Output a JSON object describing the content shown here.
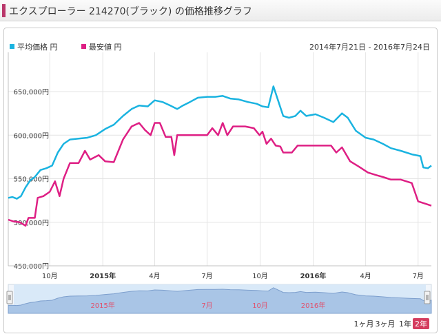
{
  "header": {
    "title": "エクスプローラー 214270(ブラック) の価格推移グラフ"
  },
  "legend": {
    "avg_label": "平均価格 円",
    "min_label": "最安値 円"
  },
  "date_range": "2014年7月21日 - 2016年7月24日",
  "colors": {
    "avg": "#1ab3e0",
    "min": "#de1f84",
    "accent": "#b9366a",
    "navigator_fill": "#a9c5e6"
  },
  "navigator": {
    "labels": [
      "2015年",
      "7月",
      "10月",
      "2016年"
    ]
  },
  "range_buttons": [
    "1ヶ月",
    "3ヶ月",
    "1年",
    "2年"
  ],
  "range_selected": "2年",
  "chart_data": {
    "type": "line",
    "title": "",
    "x_tick_labels": [
      "10月",
      "2015年",
      "4月",
      "7月",
      "10月",
      "2016年",
      "4月",
      "7月"
    ],
    "y_tick_labels": [
      "450,000円",
      "500,000円",
      "550,000円",
      "600,000円",
      "650,000円"
    ],
    "ylim": [
      450000,
      650000
    ],
    "xlim": [
      "2014-07-21",
      "2016-07-24"
    ],
    "grid": true,
    "legend_position": "top-left",
    "series": [
      {
        "name": "平均価格 円",
        "points": [
          [
            "2014-07-21",
            528000
          ],
          [
            "2014-07-28",
            529000
          ],
          [
            "2014-08-05",
            527000
          ],
          [
            "2014-08-12",
            530000
          ],
          [
            "2014-08-20",
            540000
          ],
          [
            "2014-08-28",
            548000
          ],
          [
            "2014-09-05",
            552000
          ],
          [
            "2014-09-15",
            560000
          ],
          [
            "2014-09-25",
            562000
          ],
          [
            "2014-10-05",
            565000
          ],
          [
            "2014-10-15",
            580000
          ],
          [
            "2014-10-25",
            590000
          ],
          [
            "2014-11-05",
            595000
          ],
          [
            "2014-11-20",
            596000
          ],
          [
            "2014-12-05",
            597000
          ],
          [
            "2014-12-20",
            600000
          ],
          [
            "2015-01-05",
            607000
          ],
          [
            "2015-01-20",
            612000
          ],
          [
            "2015-02-05",
            622000
          ],
          [
            "2015-02-20",
            630000
          ],
          [
            "2015-03-05",
            634000
          ],
          [
            "2015-03-20",
            633000
          ],
          [
            "2015-04-01",
            640000
          ],
          [
            "2015-04-15",
            638000
          ],
          [
            "2015-04-28",
            634000
          ],
          [
            "2015-05-10",
            630000
          ],
          [
            "2015-05-20",
            634000
          ],
          [
            "2015-06-01",
            638000
          ],
          [
            "2015-06-15",
            643000
          ],
          [
            "2015-07-01",
            644000
          ],
          [
            "2015-07-15",
            644000
          ],
          [
            "2015-07-28",
            645000
          ],
          [
            "2015-08-10",
            642000
          ],
          [
            "2015-08-25",
            641000
          ],
          [
            "2015-09-10",
            638000
          ],
          [
            "2015-09-25",
            636000
          ],
          [
            "2015-10-05",
            633000
          ],
          [
            "2015-10-15",
            632000
          ],
          [
            "2015-10-24",
            656000
          ],
          [
            "2015-11-01",
            640000
          ],
          [
            "2015-11-10",
            622000
          ],
          [
            "2015-11-20",
            620000
          ],
          [
            "2015-12-01",
            622000
          ],
          [
            "2015-12-10",
            628000
          ],
          [
            "2015-12-20",
            622000
          ],
          [
            "2016-01-05",
            624000
          ],
          [
            "2016-01-20",
            620000
          ],
          [
            "2016-02-05",
            615000
          ],
          [
            "2016-02-20",
            625000
          ],
          [
            "2016-03-01",
            620000
          ],
          [
            "2016-03-15",
            605000
          ],
          [
            "2016-04-01",
            597000
          ],
          [
            "2016-04-15",
            595000
          ],
          [
            "2016-05-01",
            590000
          ],
          [
            "2016-05-15",
            585000
          ],
          [
            "2016-06-01",
            582000
          ],
          [
            "2016-06-20",
            578000
          ],
          [
            "2016-07-05",
            576000
          ],
          [
            "2016-07-10",
            563000
          ],
          [
            "2016-07-18",
            562000
          ],
          [
            "2016-07-24",
            565000
          ]
        ]
      },
      {
        "name": "最安値 円",
        "points": [
          [
            "2014-07-21",
            503000
          ],
          [
            "2014-07-30",
            501000
          ],
          [
            "2014-08-10",
            500000
          ],
          [
            "2014-08-20",
            496000
          ],
          [
            "2014-08-25",
            505000
          ],
          [
            "2014-09-05",
            505000
          ],
          [
            "2014-09-10",
            528000
          ],
          [
            "2014-09-20",
            530000
          ],
          [
            "2014-10-01",
            535000
          ],
          [
            "2014-10-10",
            547000
          ],
          [
            "2014-10-18",
            530000
          ],
          [
            "2014-10-25",
            550000
          ],
          [
            "2014-11-05",
            568000
          ],
          [
            "2014-11-20",
            568000
          ],
          [
            "2014-12-01",
            582000
          ],
          [
            "2014-12-10",
            572000
          ],
          [
            "2014-12-25",
            577000
          ],
          [
            "2015-01-05",
            570000
          ],
          [
            "2015-01-20",
            569000
          ],
          [
            "2015-02-05",
            595000
          ],
          [
            "2015-02-20",
            610000
          ],
          [
            "2015-03-05",
            614000
          ],
          [
            "2015-03-15",
            606000
          ],
          [
            "2015-03-25",
            600000
          ],
          [
            "2015-04-01",
            614000
          ],
          [
            "2015-04-10",
            614000
          ],
          [
            "2015-04-20",
            598000
          ],
          [
            "2015-04-30",
            598000
          ],
          [
            "2015-05-05",
            577000
          ],
          [
            "2015-05-10",
            600000
          ],
          [
            "2015-06-15",
            600000
          ],
          [
            "2015-07-01",
            600000
          ],
          [
            "2015-07-10",
            608000
          ],
          [
            "2015-07-20",
            600000
          ],
          [
            "2015-07-28",
            614000
          ],
          [
            "2015-08-05",
            600000
          ],
          [
            "2015-08-15",
            610000
          ],
          [
            "2015-09-05",
            610000
          ],
          [
            "2015-09-20",
            608000
          ],
          [
            "2015-09-30",
            600000
          ],
          [
            "2015-10-05",
            604000
          ],
          [
            "2015-10-12",
            590000
          ],
          [
            "2015-10-20",
            596000
          ],
          [
            "2015-10-28",
            588000
          ],
          [
            "2015-11-05",
            587000
          ],
          [
            "2015-11-10",
            580000
          ],
          [
            "2015-11-25",
            580000
          ],
          [
            "2015-12-05",
            588000
          ],
          [
            "2016-01-10",
            588000
          ],
          [
            "2016-02-01",
            588000
          ],
          [
            "2016-02-10",
            580000
          ],
          [
            "2016-02-20",
            586000
          ],
          [
            "2016-03-05",
            570000
          ],
          [
            "2016-03-20",
            564000
          ],
          [
            "2016-04-05",
            557000
          ],
          [
            "2016-04-20",
            554000
          ],
          [
            "2016-05-01",
            552000
          ],
          [
            "2016-05-15",
            549000
          ],
          [
            "2016-06-01",
            549000
          ],
          [
            "2016-06-20",
            545000
          ],
          [
            "2016-07-01",
            524000
          ],
          [
            "2016-07-15",
            521000
          ],
          [
            "2016-07-24",
            519000
          ]
        ]
      }
    ],
    "navigator_series": "平均価格 円"
  }
}
